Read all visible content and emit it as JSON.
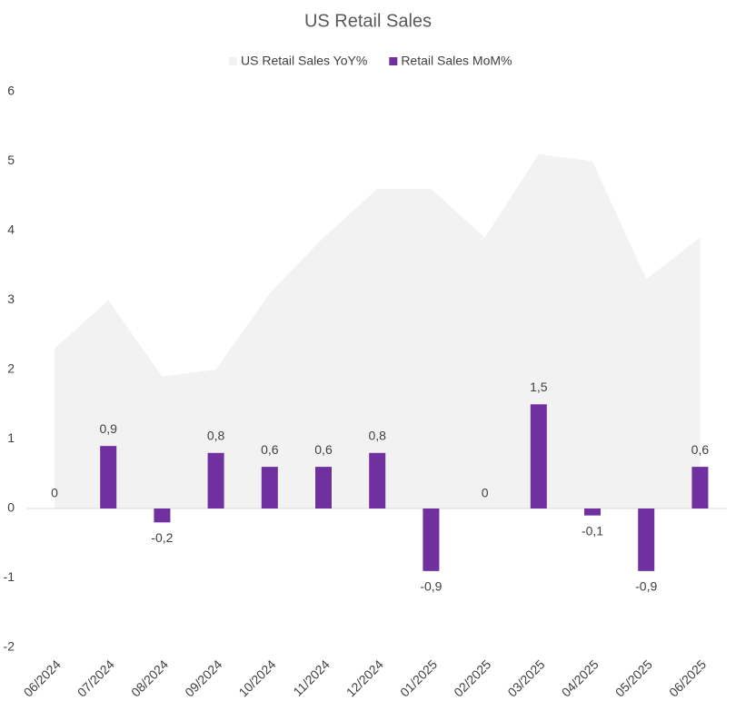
{
  "chart_data": {
    "type": "bar_area",
    "title": "US Retail Sales",
    "categories": [
      "06/2024",
      "07/2024",
      "08/2024",
      "09/2024",
      "10/2024",
      "11/2024",
      "12/2024",
      "01/2025",
      "02/2025",
      "03/2025",
      "04/2025",
      "05/2025",
      "06/2025"
    ],
    "series": [
      {
        "name": "US Retail Sales YoY%",
        "type": "area",
        "color": "#f2f2f2",
        "values": [
          2.3,
          3.0,
          1.9,
          2.0,
          3.1,
          3.9,
          4.6,
          4.6,
          3.9,
          5.1,
          5.0,
          3.3,
          3.9
        ]
      },
      {
        "name": "Retail Sales MoM%",
        "type": "bar",
        "color": "#7030a0",
        "values": [
          0,
          0.9,
          -0.2,
          0.8,
          0.6,
          0.6,
          0.8,
          -0.9,
          0,
          1.5,
          -0.1,
          -0.9,
          0.6
        ],
        "value_labels": [
          "0",
          "0,9",
          "-0,2",
          "0,8",
          "0,6",
          "0,6",
          "0,8",
          "-0,9",
          "0",
          "1,5",
          "-0,1",
          "-0,9",
          "0,6"
        ]
      }
    ],
    "ylim": [
      -2,
      6
    ],
    "yticks": [
      -2,
      -1,
      0,
      1,
      2,
      3,
      4,
      5,
      6
    ],
    "grid": false,
    "legend": "top"
  }
}
